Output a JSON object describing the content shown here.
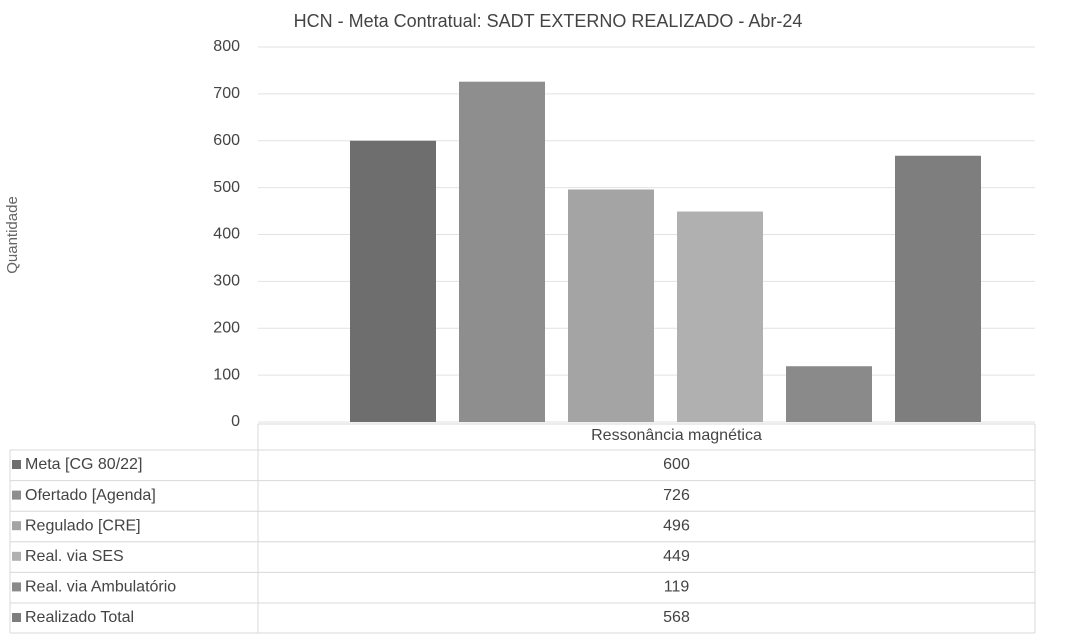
{
  "chart_data": {
    "type": "bar",
    "title": "HCN - Meta Contratual: SADT EXTERNO REALIZADO - Abr-24",
    "y_label": "Quantidade",
    "categories": [
      "Ressonância magnética"
    ],
    "series": [
      {
        "name": "Meta [CG 80/22]",
        "color": "#6e6e6e",
        "values": [
          600
        ]
      },
      {
        "name": "Ofertado [Agenda]",
        "color": "#8e8e8e",
        "values": [
          726
        ]
      },
      {
        "name": "Regulado [CRE]",
        "color": "#a4a4a4",
        "values": [
          496
        ]
      },
      {
        "name": "Real. via SES",
        "color": "#b0b0b0",
        "values": [
          449
        ]
      },
      {
        "name": "Real. via Ambulatório",
        "color": "#8a8a8a",
        "values": [
          119
        ]
      },
      {
        "name": "Realizado Total",
        "color": "#7e7e7e",
        "values": [
          568
        ]
      }
    ],
    "ylim": [
      0,
      800
    ],
    "yticks": [
      0,
      100,
      200,
      300,
      400,
      500,
      600,
      700,
      800
    ],
    "grid": true
  }
}
